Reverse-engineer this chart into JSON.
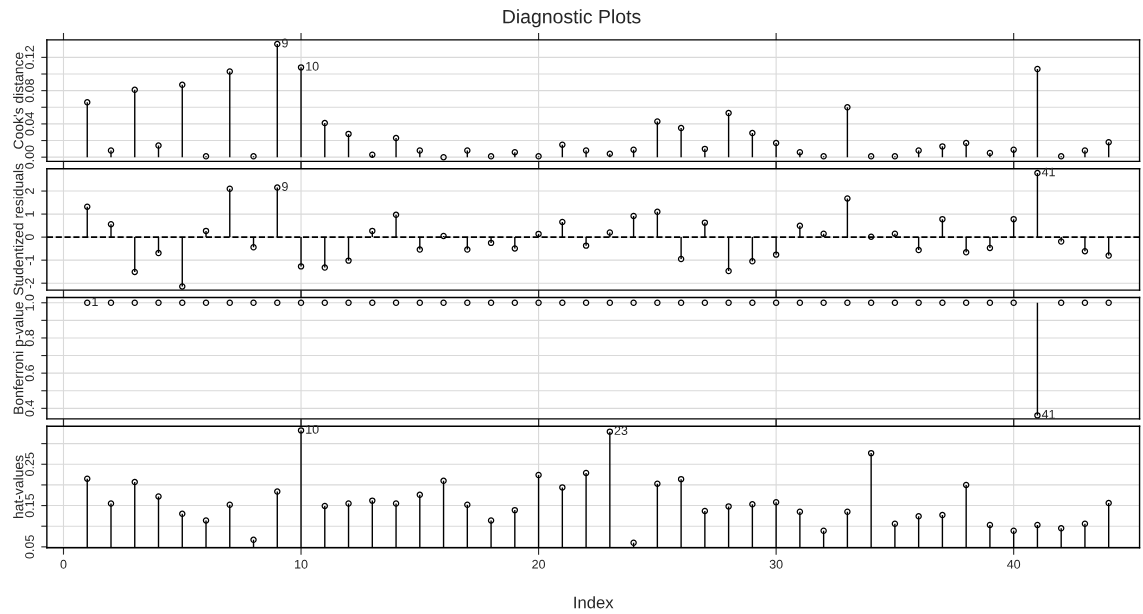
{
  "chart_data": [
    {
      "type": "lollipop",
      "title": "Diagnostic Plots",
      "ylabel": "Cook's distance",
      "marker": "circle",
      "grid": true,
      "tick_labels": "y",
      "x": [
        1,
        2,
        3,
        4,
        5,
        6,
        7,
        8,
        9,
        10,
        11,
        12,
        13,
        14,
        15,
        16,
        17,
        18,
        19,
        20,
        21,
        22,
        23,
        24,
        25,
        26,
        27,
        28,
        29,
        30,
        31,
        32,
        33,
        34,
        35,
        36,
        37,
        38,
        39,
        40,
        41,
        42,
        43,
        44
      ],
      "series": [
        {
          "color": "#000000",
          "values": [
            0.066,
            0.008,
            0.081,
            0.014,
            0.087,
            0.001,
            0.103,
            0.001,
            0.136,
            0.108,
            0.041,
            0.028,
            0.003,
            0.023,
            0.008,
            0.0,
            0.008,
            0.001,
            0.006,
            0.001,
            0.015,
            0.008,
            0.004,
            0.009,
            0.043,
            0.035,
            0.01,
            0.053,
            0.029,
            0.017,
            0.006,
            0.001,
            0.06,
            0.001,
            0.001,
            0.008,
            0.013,
            0.017,
            0.005,
            0.009,
            0.106,
            0.001,
            0.008,
            0.018
          ]
        }
      ],
      "xlim": [
        -0.7,
        45.3
      ],
      "xticks": [
        0,
        10,
        20,
        30,
        40
      ],
      "ylim": [
        -0.005,
        0.141
      ],
      "yticks": [
        {
          "value": 0,
          "label": "0.00"
        },
        {
          "value": 0.02,
          "label": null
        },
        {
          "value": 0.04,
          "label": "0.04"
        },
        {
          "value": 0.06,
          "label": null
        },
        {
          "value": 0.08,
          "label": "0.08"
        },
        {
          "value": 0.1,
          "label": null
        },
        {
          "value": 0.12,
          "label": "0.12"
        }
      ],
      "annotations": [
        {
          "text": "9",
          "x": 9,
          "y": 0.136
        },
        {
          "text": "10",
          "x": 10,
          "y": 0.108
        }
      ]
    },
    {
      "type": "lollipop",
      "ylabel": "Studentized residuals",
      "marker": "circle",
      "grid": true,
      "tick_labels": "y",
      "x": [
        1,
        2,
        3,
        4,
        5,
        6,
        7,
        8,
        9,
        10,
        11,
        12,
        13,
        14,
        15,
        16,
        17,
        18,
        19,
        20,
        21,
        22,
        23,
        24,
        25,
        26,
        27,
        28,
        29,
        30,
        31,
        32,
        33,
        34,
        35,
        36,
        37,
        38,
        39,
        40,
        41,
        42,
        43,
        44
      ],
      "series": [
        {
          "color": "#000000",
          "values": [
            1.32,
            0.56,
            -1.51,
            -0.69,
            -2.14,
            0.27,
            2.1,
            -0.44,
            2.15,
            -1.27,
            -1.32,
            -1.02,
            0.27,
            0.97,
            -0.54,
            0.05,
            -0.54,
            -0.25,
            -0.49,
            0.14,
            0.66,
            -0.37,
            0.2,
            0.92,
            1.1,
            -0.95,
            0.63,
            -1.47,
            -1.05,
            -0.76,
            0.49,
            0.15,
            1.68,
            0.02,
            0.15,
            -0.56,
            0.78,
            -0.66,
            -0.47,
            0.78,
            2.78,
            -0.19,
            -0.61,
            -0.8
          ]
        }
      ],
      "xlim": [
        -0.7,
        45.3
      ],
      "xticks": [
        0,
        10,
        20,
        30,
        40
      ],
      "ylim": [
        -2.3,
        2.97
      ],
      "yticks": [
        {
          "value": -2,
          "label": "-2"
        },
        {
          "value": -1,
          "label": "-1"
        },
        0,
        1,
        2
      ],
      "ref_lines": [
        {
          "axis": "y",
          "value": 0,
          "line_style": "dashed",
          "color": "#000000"
        }
      ],
      "annotations": [
        {
          "text": "9",
          "x": 9,
          "y": 2.15
        },
        {
          "text": "41",
          "x": 41,
          "y": 2.78
        }
      ]
    },
    {
      "type": "scatter",
      "ylabel": "Bonferroni p-value",
      "marker": "circle",
      "grid": true,
      "tick_labels": "y",
      "x": [
        1,
        2,
        3,
        4,
        5,
        6,
        7,
        8,
        9,
        10,
        11,
        12,
        13,
        14,
        15,
        16,
        17,
        18,
        19,
        20,
        21,
        22,
        23,
        24,
        25,
        26,
        27,
        28,
        29,
        30,
        31,
        32,
        33,
        34,
        35,
        36,
        37,
        38,
        39,
        40,
        41,
        42,
        43,
        44
      ],
      "series": [
        {
          "color": "#000000",
          "values": [
            1,
            1,
            1,
            1,
            1,
            1,
            1,
            1,
            1,
            1,
            1,
            1,
            1,
            1,
            1,
            1,
            1,
            1,
            1,
            1,
            1,
            1,
            1,
            1,
            1,
            1,
            1,
            1,
            1,
            1,
            1,
            1,
            1,
            1,
            1,
            1,
            1,
            1,
            1,
            1,
            0.36,
            1,
            1,
            1
          ],
          "errors": [
            null,
            null,
            null,
            null,
            null,
            null,
            null,
            null,
            null,
            null,
            null,
            null,
            null,
            null,
            null,
            null,
            null,
            null,
            null,
            null,
            null,
            null,
            null,
            null,
            null,
            null,
            null,
            null,
            null,
            null,
            null,
            null,
            null,
            null,
            null,
            null,
            null,
            null,
            null,
            null,
            [
              0.36,
              1.0
            ],
            null,
            null,
            null
          ]
        }
      ],
      "xlim": [
        -0.7,
        45.3
      ],
      "xticks": [
        0,
        10,
        20,
        30,
        40
      ],
      "ylim": [
        0.34,
        1.03
      ],
      "yticks": [
        0.4,
        {
          "value": 0.5,
          "label": null
        },
        0.6,
        {
          "value": 0.7,
          "label": null
        },
        0.8,
        {
          "value": 0.9,
          "label": null
        },
        {
          "value": 1.0,
          "label": "1.0"
        }
      ],
      "annotations": [
        {
          "text": "1",
          "x": 1,
          "y": 1
        },
        {
          "text": "41",
          "x": 41,
          "y": 0.36
        }
      ]
    },
    {
      "type": "lollipop",
      "ylabel": "hat-values",
      "xlabel": "Index",
      "marker": "circle",
      "grid": true,
      "x": [
        1,
        2,
        3,
        4,
        5,
        6,
        7,
        8,
        9,
        10,
        11,
        12,
        13,
        14,
        15,
        16,
        17,
        18,
        19,
        20,
        21,
        22,
        23,
        24,
        25,
        26,
        27,
        28,
        29,
        30,
        31,
        32,
        33,
        34,
        35,
        36,
        37,
        38,
        39,
        40,
        41,
        42,
        43,
        44
      ],
      "series": [
        {
          "color": "#000000",
          "values": [
            0.215,
            0.155,
            0.207,
            0.172,
            0.13,
            0.114,
            0.152,
            0.067,
            0.184,
            0.332,
            0.149,
            0.155,
            0.162,
            0.155,
            0.176,
            0.21,
            0.152,
            0.114,
            0.139,
            0.224,
            0.194,
            0.229,
            0.329,
            0.06,
            0.203,
            0.214,
            0.137,
            0.148,
            0.153,
            0.158,
            0.135,
            0.089,
            0.135,
            0.277,
            0.106,
            0.124,
            0.127,
            0.2,
            0.103,
            0.089,
            0.103,
            0.095,
            0.106,
            0.156
          ]
        }
      ],
      "xlim": [
        -0.7,
        45.3
      ],
      "xticks": [
        0,
        10,
        20,
        30,
        40
      ],
      "ylim": [
        0.048,
        0.342
      ],
      "yticks": [
        0.05,
        {
          "value": 0.1,
          "label": null
        },
        0.15,
        {
          "value": 0.2,
          "label": null
        },
        0.25,
        {
          "value": 0.3,
          "label": null
        }
      ],
      "annotations": [
        {
          "text": "10",
          "x": 10,
          "y": 0.332
        },
        {
          "text": "23",
          "x": 23,
          "y": 0.329
        }
      ]
    }
  ]
}
